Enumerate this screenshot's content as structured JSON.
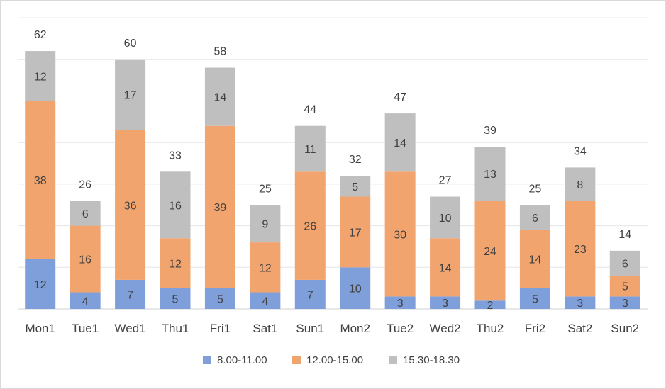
{
  "chart_data": {
    "type": "bar",
    "stacked": true,
    "categories": [
      "Mon1",
      "Tue1",
      "Wed1",
      "Thu1",
      "Fri1",
      "Sat1",
      "Sun1",
      "Mon2",
      "Tue2",
      "Wed2",
      "Thu2",
      "Fri2",
      "Sat2",
      "Sun2"
    ],
    "series": [
      {
        "name": "8.00-11.00",
        "color": "#7f9fdb",
        "values": [
          12,
          4,
          7,
          5,
          5,
          4,
          7,
          10,
          3,
          3,
          2,
          5,
          3,
          3
        ]
      },
      {
        "name": "12.00-15.00",
        "color": "#f2a46e",
        "values": [
          38,
          16,
          36,
          12,
          39,
          12,
          26,
          17,
          30,
          14,
          24,
          14,
          23,
          5
        ]
      },
      {
        "name": "15.30-18.30",
        "color": "#bfbfbf",
        "values": [
          12,
          6,
          17,
          16,
          14,
          9,
          11,
          5,
          14,
          10,
          13,
          6,
          8,
          6
        ]
      }
    ],
    "totals": [
      62,
      26,
      60,
      33,
      58,
      25,
      44,
      32,
      47,
      27,
      39,
      25,
      34,
      14
    ],
    "ylim": [
      0,
      70
    ],
    "grid": true,
    "legend_position": "bottom"
  }
}
